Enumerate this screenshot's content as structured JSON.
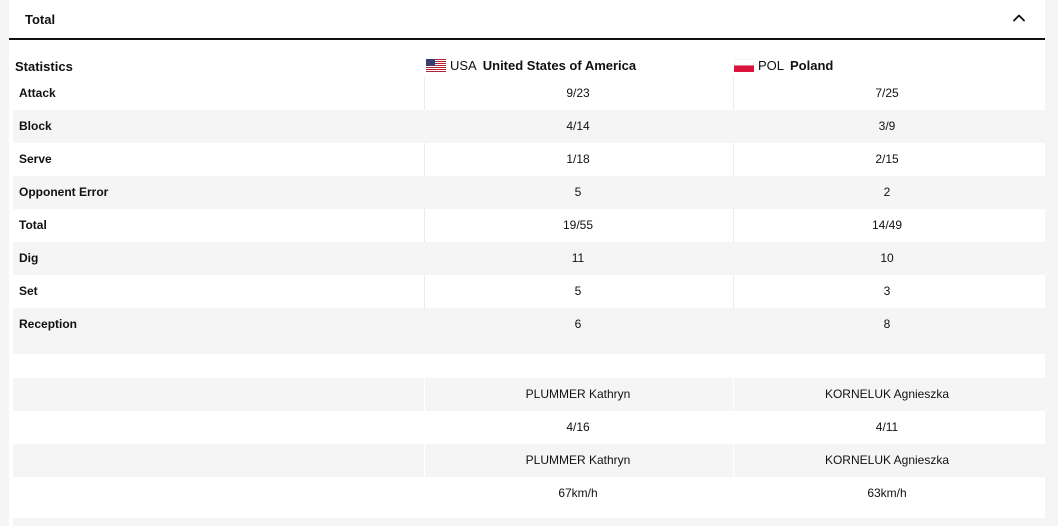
{
  "header": {
    "title": "Total"
  },
  "teams": {
    "label": "Statistics",
    "team1": {
      "code": "USA",
      "name": "United States of America"
    },
    "team2": {
      "code": "POL",
      "name": "Poland"
    }
  },
  "stats": [
    {
      "label": "Attack",
      "team1": "9/23",
      "team2": "7/25"
    },
    {
      "label": "Block",
      "team1": "4/14",
      "team2": "3/9"
    },
    {
      "label": "Serve",
      "team1": "1/18",
      "team2": "2/15"
    },
    {
      "label": "Opponent Error",
      "team1": "5",
      "team2": "2"
    },
    {
      "label": "Total",
      "team1": "19/55",
      "team2": "14/49"
    },
    {
      "label": "Dig",
      "team1": "11",
      "team2": "10"
    },
    {
      "label": "Set",
      "team1": "5",
      "team2": "3"
    },
    {
      "label": "Reception",
      "team1": "6",
      "team2": "8"
    }
  ],
  "leaders": [
    {
      "label": "",
      "team1": "PLUMMER Kathryn",
      "team2": "KORNELUK Agnieszka"
    },
    {
      "label": "",
      "team1": "4/16",
      "team2": "4/11"
    },
    {
      "label": "",
      "team1": "PLUMMER Kathryn",
      "team2": "KORNELUK Agnieszka"
    },
    {
      "label": "",
      "team1": "67km/h",
      "team2": "63km/h"
    }
  ]
}
